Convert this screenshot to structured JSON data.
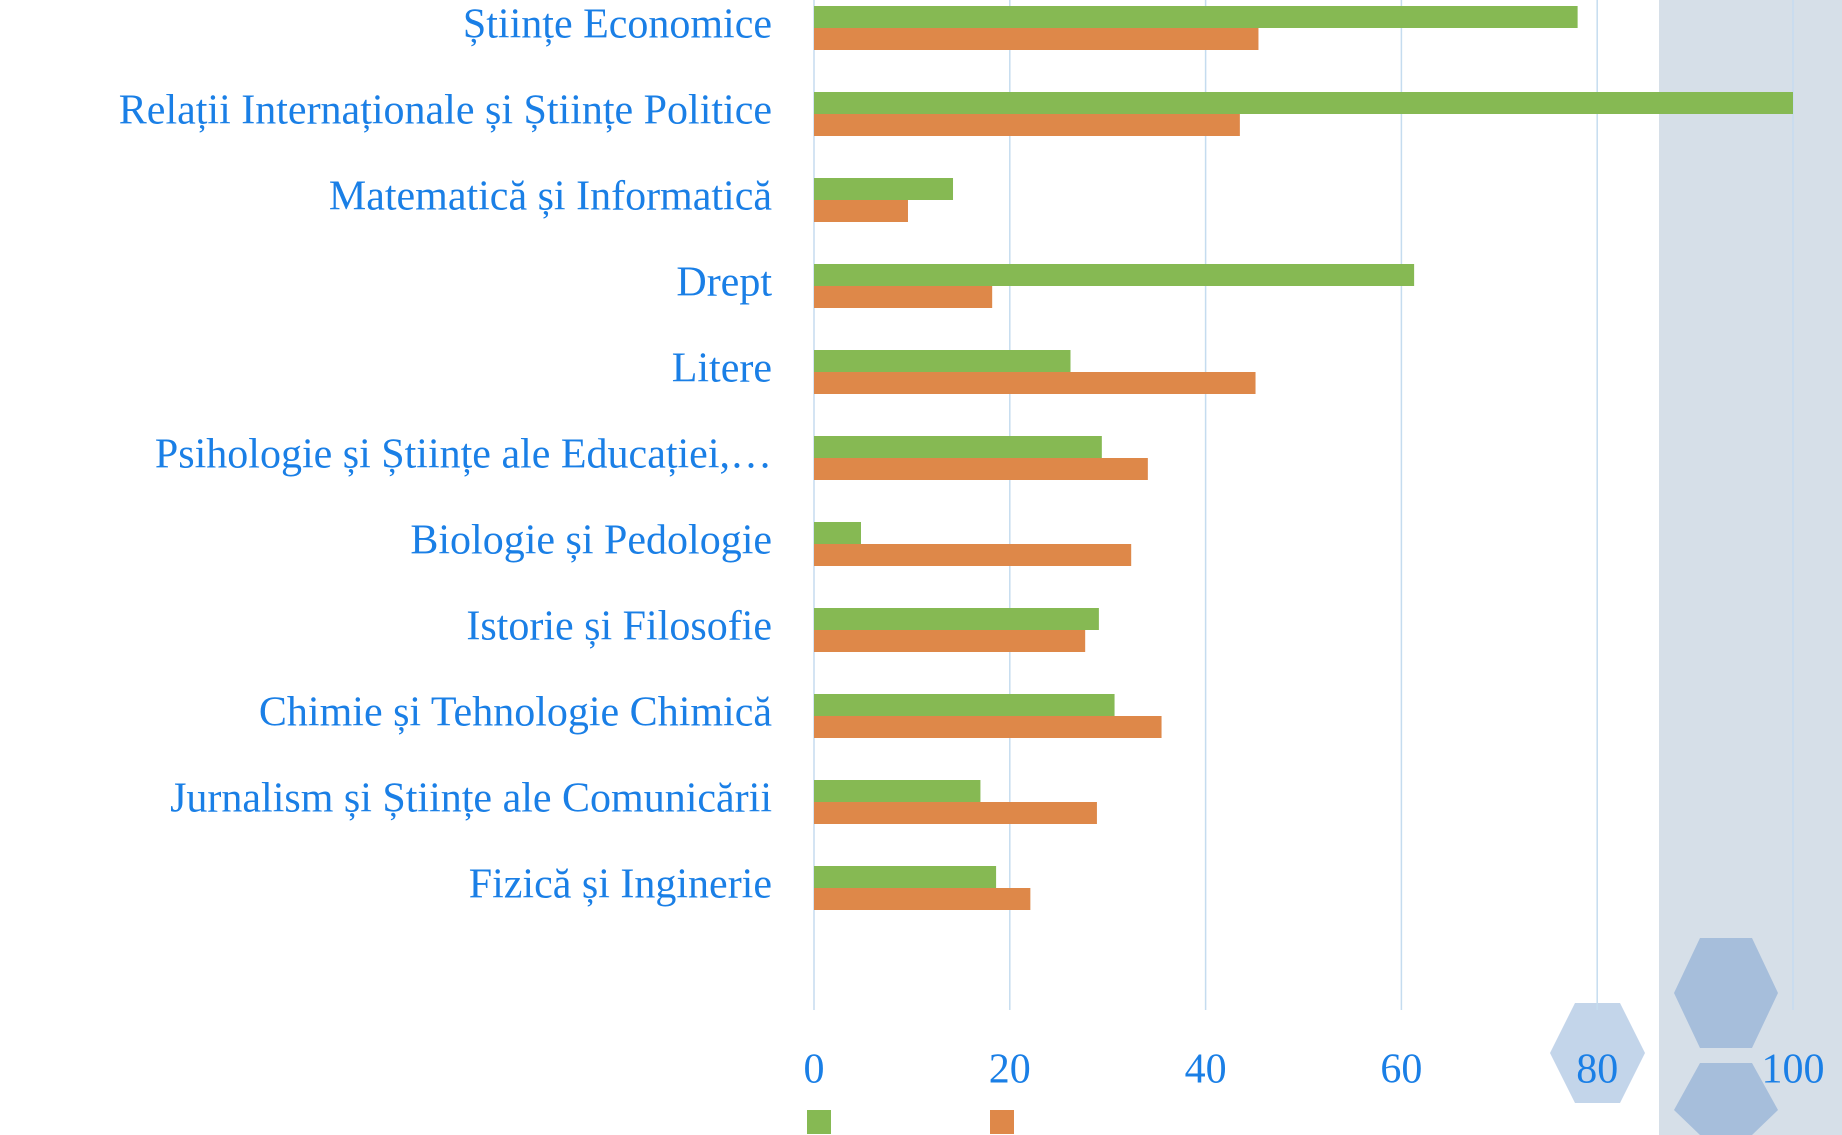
{
  "chart_data": {
    "type": "hbar",
    "categories": [
      "Științe Economice",
      "Relații Internaționale și Științe Politice",
      "Matematică și Informatică",
      "Drept",
      "Litere",
      "Psihologie și Științe ale Educației,…",
      "Biologie și Pedologie",
      "Istorie și Filosofie",
      "Chimie și Tehnologie Chimică",
      "Jurnalism și Științe ale Comunicării",
      "Fizică și Inginerie"
    ],
    "series": [
      {
        "color": "#86b953",
        "values": [
          78.0,
          100,
          14.2,
          61.3,
          26.2,
          29.4,
          4.8,
          29.1,
          30.7,
          17.0,
          18.6
        ]
      },
      {
        "color": "#de8849",
        "values": [
          45.4,
          43.5,
          9.6,
          18.2,
          45.1,
          34.1,
          32.4,
          27.7,
          35.5,
          28.9,
          22.1
        ]
      }
    ],
    "xlim": [
      0,
      100
    ],
    "xticks": [
      0,
      20,
      40,
      60,
      80,
      100
    ],
    "grid": true
  }
}
